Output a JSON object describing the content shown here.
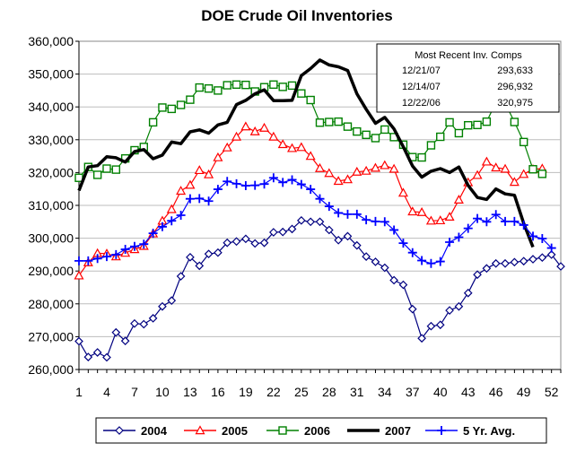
{
  "chart_data": {
    "type": "line",
    "title": "DOE Crude Oil Inventories",
    "xlabel": "",
    "ylabel": "",
    "xlim": [
      1,
      53
    ],
    "ylim": [
      260000,
      360000
    ],
    "yticks": [
      260000,
      270000,
      280000,
      290000,
      300000,
      310000,
      320000,
      330000,
      340000,
      350000,
      360000
    ],
    "ytick_labels": [
      "260,000",
      "270,000",
      "280,000",
      "290,000",
      "300,000",
      "310,000",
      "320,000",
      "330,000",
      "340,000",
      "350,000",
      "360,000"
    ],
    "xticks": [
      1,
      4,
      7,
      10,
      13,
      16,
      19,
      22,
      25,
      28,
      31,
      34,
      37,
      40,
      43,
      46,
      49,
      52
    ],
    "xtick_labels": [
      "1",
      "4",
      "7",
      "10",
      "13",
      "16",
      "19",
      "22",
      "25",
      "28",
      "31",
      "34",
      "37",
      "40",
      "43",
      "46",
      "49",
      "52"
    ],
    "grid": "horizontal",
    "legend_position": "bottom",
    "series": [
      {
        "name": "2004",
        "color": "#000080",
        "marker": "diamond",
        "x": [
          1,
          2,
          3,
          4,
          5,
          6,
          7,
          8,
          9,
          10,
          11,
          12,
          13,
          14,
          15,
          16,
          17,
          18,
          19,
          20,
          21,
          22,
          23,
          24,
          25,
          26,
          27,
          28,
          29,
          30,
          31,
          32,
          33,
          34,
          35,
          36,
          37,
          38,
          39,
          40,
          41,
          42,
          43,
          44,
          45,
          46,
          47,
          48,
          49,
          50,
          51,
          52,
          53
        ],
        "values": [
          268600,
          263800,
          265200,
          263700,
          271300,
          268700,
          274000,
          273800,
          275600,
          279200,
          281000,
          288400,
          294200,
          291600,
          295200,
          295600,
          298600,
          299000,
          299800,
          298400,
          298600,
          301800,
          301900,
          302800,
          305400,
          305000,
          305000,
          302500,
          299400,
          300600,
          297800,
          294400,
          292800,
          291000,
          287200,
          285800,
          278400,
          269500,
          273200,
          273600,
          278000,
          279200,
          283300,
          288900,
          290800,
          292300,
          292300,
          292700,
          293000,
          293600,
          294100,
          295000,
          291400
        ]
      },
      {
        "name": "2005",
        "color": "#ff0000",
        "marker": "triangle",
        "x": [
          1,
          2,
          3,
          4,
          5,
          6,
          7,
          8,
          9,
          10,
          11,
          12,
          13,
          14,
          15,
          16,
          17,
          18,
          19,
          20,
          21,
          22,
          23,
          24,
          25,
          26,
          27,
          28,
          29,
          30,
          31,
          32,
          33,
          34,
          35,
          36,
          37,
          38,
          39,
          40,
          41,
          42,
          43,
          44,
          45,
          46,
          47,
          48,
          49,
          50,
          51
        ],
        "values": [
          288600,
          292600,
          295400,
          295300,
          294400,
          295500,
          296600,
          297600,
          301400,
          305300,
          308800,
          314400,
          316200,
          320700,
          319400,
          324600,
          327600,
          330900,
          334000,
          332500,
          333600,
          330900,
          328600,
          327400,
          327700,
          325000,
          321300,
          319800,
          317400,
          317900,
          320200,
          320500,
          321400,
          322200,
          321100,
          313800,
          308100,
          307900,
          305300,
          305400,
          306500,
          311700,
          317000,
          319200,
          323300,
          321500,
          321100,
          317100,
          319500,
          321000,
          321200
        ]
      },
      {
        "name": "2006",
        "color": "#008000",
        "marker": "square",
        "x": [
          1,
          2,
          3,
          4,
          5,
          6,
          7,
          8,
          9,
          10,
          11,
          12,
          13,
          14,
          15,
          16,
          17,
          18,
          19,
          20,
          21,
          22,
          23,
          24,
          25,
          26,
          27,
          28,
          29,
          30,
          31,
          32,
          33,
          34,
          35,
          36,
          37,
          38,
          39,
          40,
          41,
          42,
          43,
          44,
          45,
          46,
          47,
          48,
          49,
          50,
          51
        ],
        "values": [
          318400,
          321700,
          319300,
          321200,
          320900,
          324300,
          326800,
          327800,
          335300,
          339800,
          339400,
          340600,
          342200,
          345900,
          345600,
          345000,
          346600,
          346800,
          346700,
          344700,
          346000,
          346800,
          346100,
          346500,
          344100,
          342100,
          335200,
          335400,
          335500,
          334000,
          332500,
          331500,
          330500,
          333100,
          330800,
          328500,
          324700,
          324600,
          328300,
          330900,
          335300,
          332000,
          334400,
          334500,
          335500,
          341400,
          341100,
          335400,
          329300,
          321000,
          319600
        ]
      },
      {
        "name": "2007",
        "color": "#000000",
        "marker": "none",
        "x": [
          1,
          2,
          3,
          4,
          5,
          6,
          7,
          8,
          9,
          10,
          11,
          12,
          13,
          14,
          15,
          16,
          17,
          18,
          19,
          20,
          21,
          22,
          23,
          24,
          25,
          26,
          27,
          28,
          29,
          30,
          31,
          32,
          33,
          34,
          35,
          36,
          37,
          38,
          39,
          40,
          41,
          42,
          43,
          44,
          45,
          46,
          47,
          48,
          49,
          50
        ],
        "values": [
          314500,
          321700,
          322100,
          324800,
          324500,
          323200,
          326400,
          327000,
          324200,
          325300,
          329300,
          328800,
          332400,
          333000,
          332000,
          334500,
          335300,
          340700,
          342000,
          344000,
          345200,
          341900,
          341900,
          342000,
          349500,
          351700,
          354300,
          352800,
          352200,
          351100,
          344000,
          339300,
          335000,
          336800,
          333300,
          327900,
          322000,
          318600,
          320400,
          321200,
          320000,
          321700,
          316100,
          312400,
          311800,
          315000,
          313500,
          313100,
          304500,
          297300
        ]
      },
      {
        "name": "5  Yr. Avg.",
        "color": "#0000ff",
        "marker": "plus",
        "x": [
          1,
          2,
          3,
          4,
          5,
          6,
          7,
          8,
          9,
          10,
          11,
          12,
          13,
          14,
          15,
          16,
          17,
          18,
          19,
          20,
          21,
          22,
          23,
          24,
          25,
          26,
          27,
          28,
          29,
          30,
          31,
          32,
          33,
          34,
          35,
          36,
          37,
          38,
          39,
          40,
          41,
          42,
          43,
          44,
          45,
          46,
          47,
          48,
          49,
          50,
          51,
          52
        ],
        "values": [
          293100,
          293100,
          293800,
          294400,
          295000,
          296600,
          297500,
          298200,
          301500,
          303500,
          305300,
          307000,
          312000,
          312100,
          311300,
          314900,
          317300,
          316600,
          316000,
          316100,
          316500,
          318400,
          317000,
          317800,
          316400,
          314900,
          312000,
          309700,
          307700,
          307300,
          307300,
          305600,
          305100,
          305000,
          302500,
          298500,
          295600,
          293200,
          292300,
          292900,
          298800,
          300300,
          303000,
          306000,
          305000,
          307200,
          305100,
          305100,
          304000,
          300600,
          299900,
          297000
        ]
      }
    ],
    "inset": {
      "title": "Most Recent Inv. Comps",
      "rows": [
        {
          "label": "12/21/07",
          "value": "293,633"
        },
        {
          "label": "12/14/07",
          "value": "296,932"
        },
        {
          "label": "12/22/06",
          "value": "320,975"
        }
      ]
    }
  }
}
